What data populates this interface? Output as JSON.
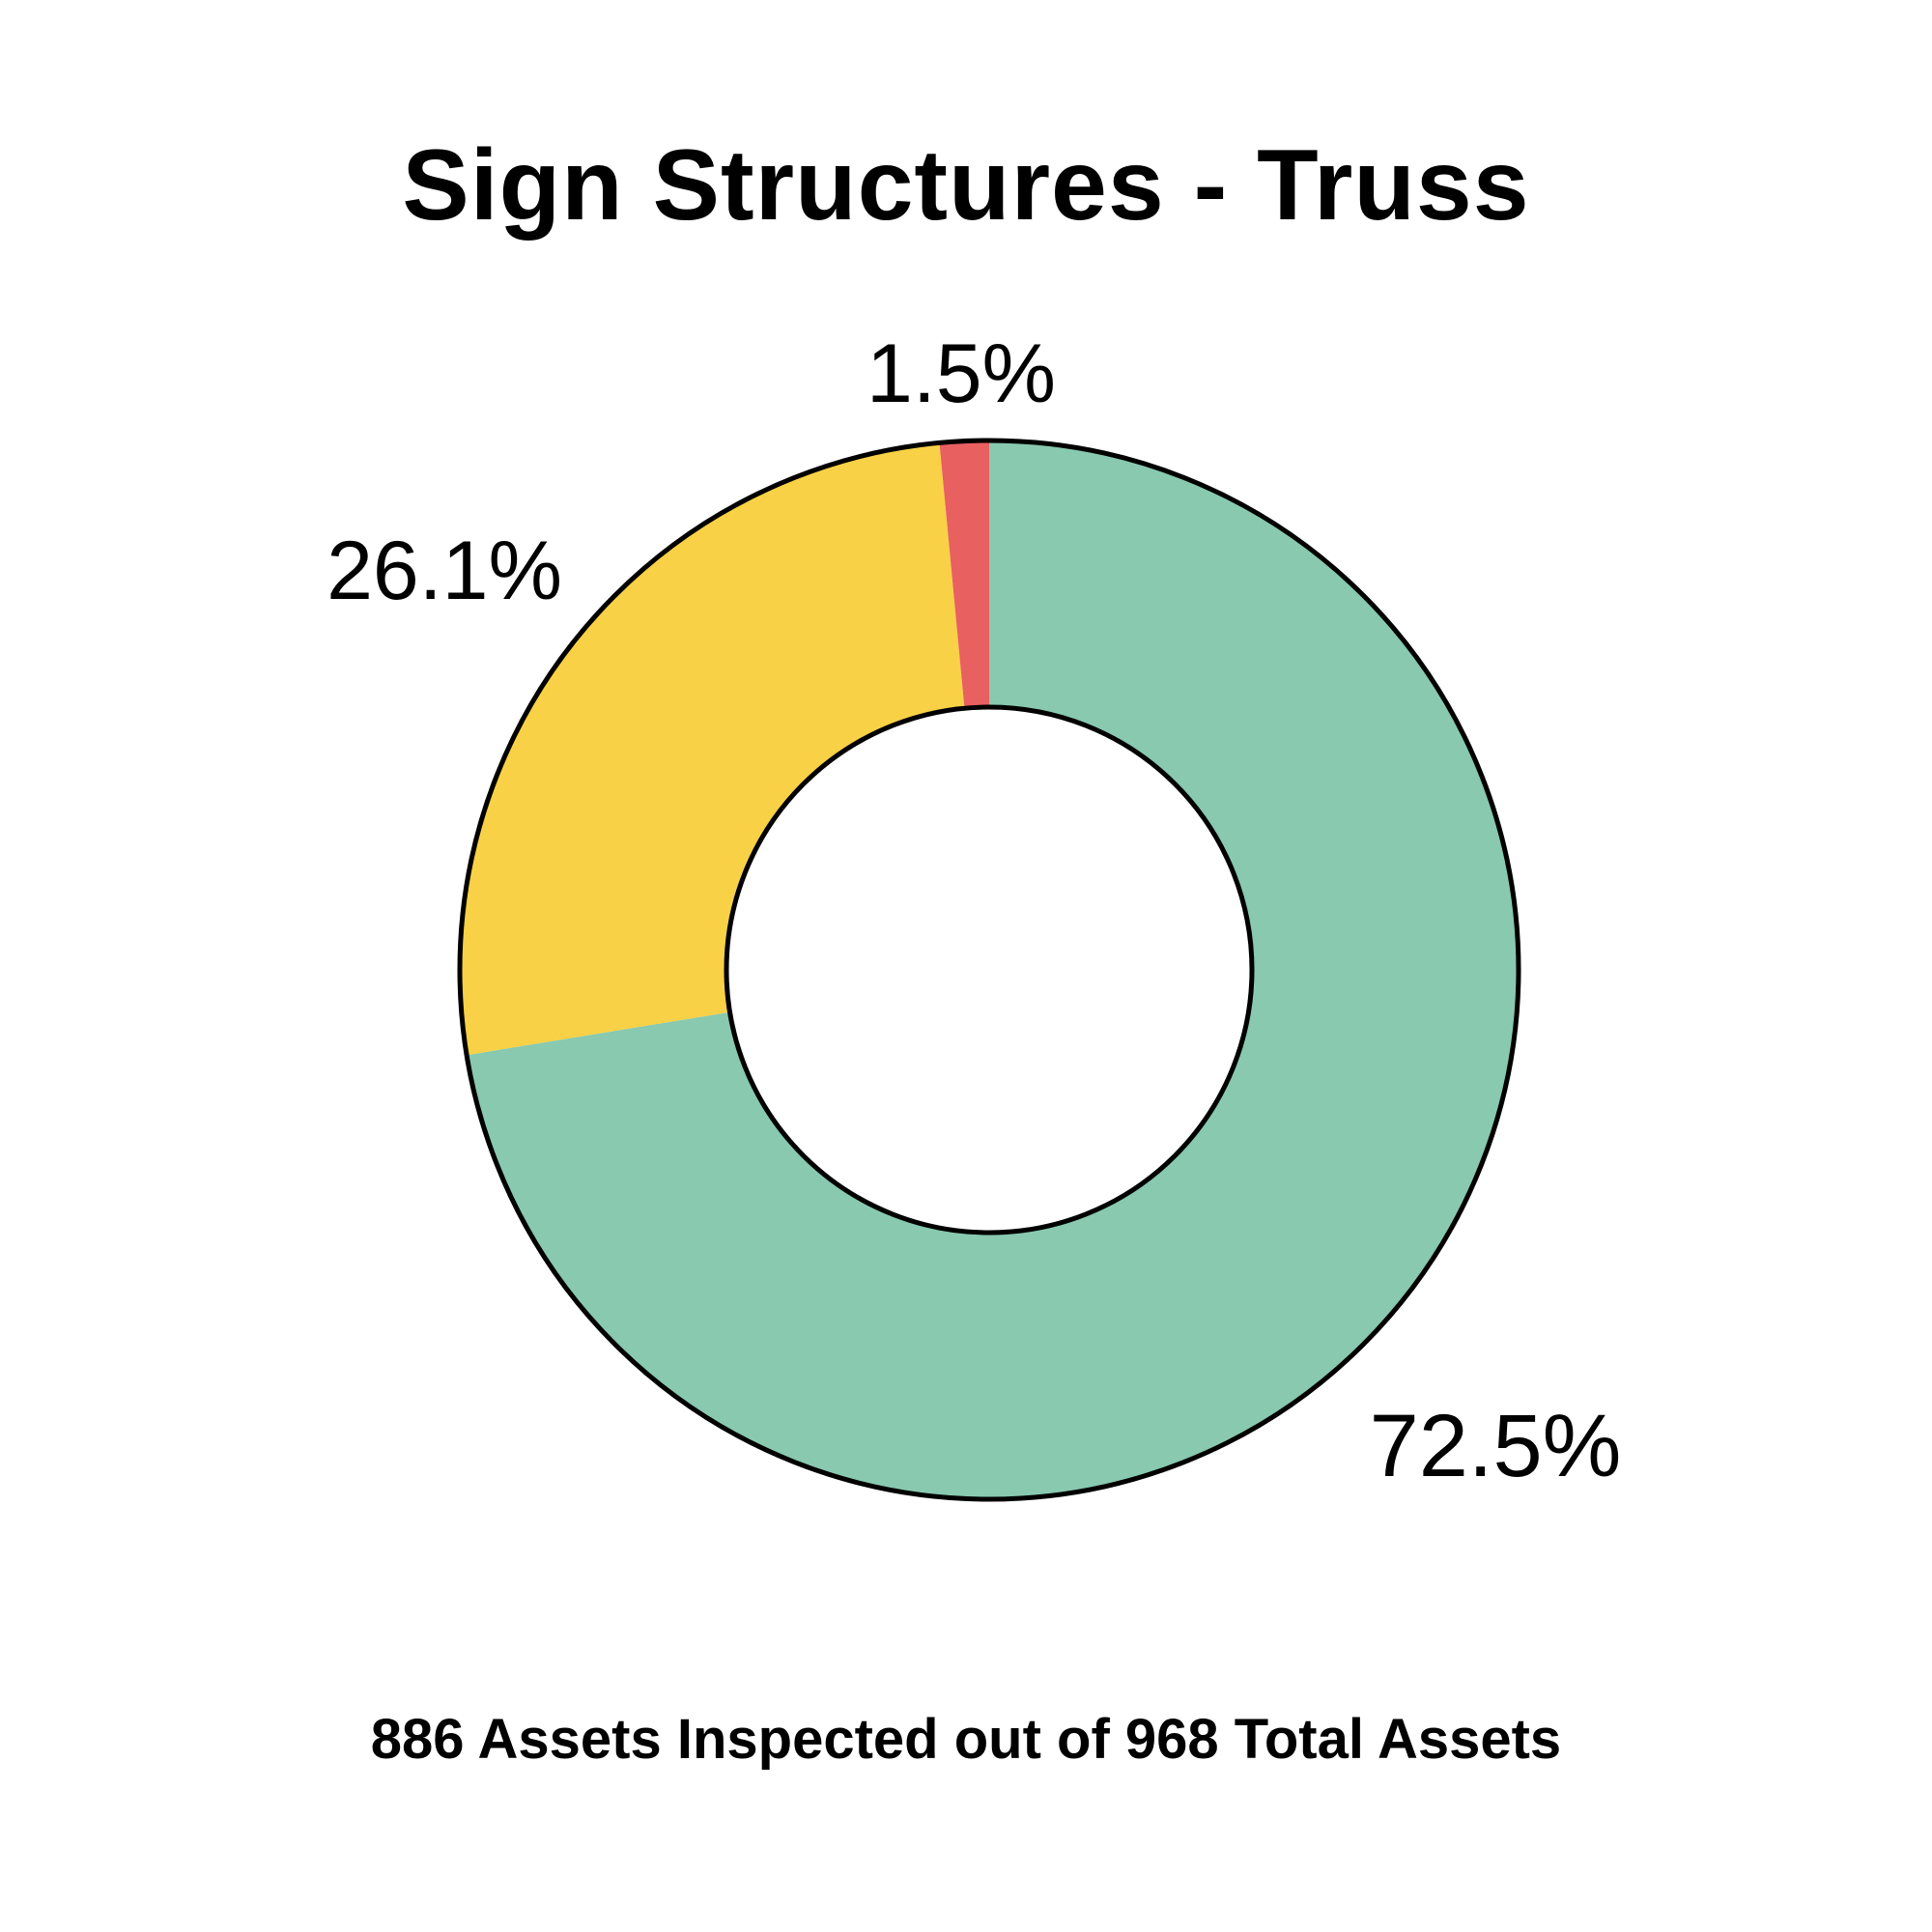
{
  "chart_data": {
    "type": "pie",
    "variant": "donut",
    "title": "Sign Structures - Truss",
    "footer": "886 Assets Inspected out of 968 Total Assets",
    "slices": [
      {
        "label": "72.5%",
        "value": 72.5,
        "color": "#88C9B0"
      },
      {
        "label": "26.1%",
        "value": 26.1,
        "color": "#F8D146"
      },
      {
        "label": "1.5%",
        "value": 1.5,
        "color": "#E86060"
      }
    ],
    "start": "top, clockwise",
    "legend": "none",
    "outline_color": "#000000"
  }
}
